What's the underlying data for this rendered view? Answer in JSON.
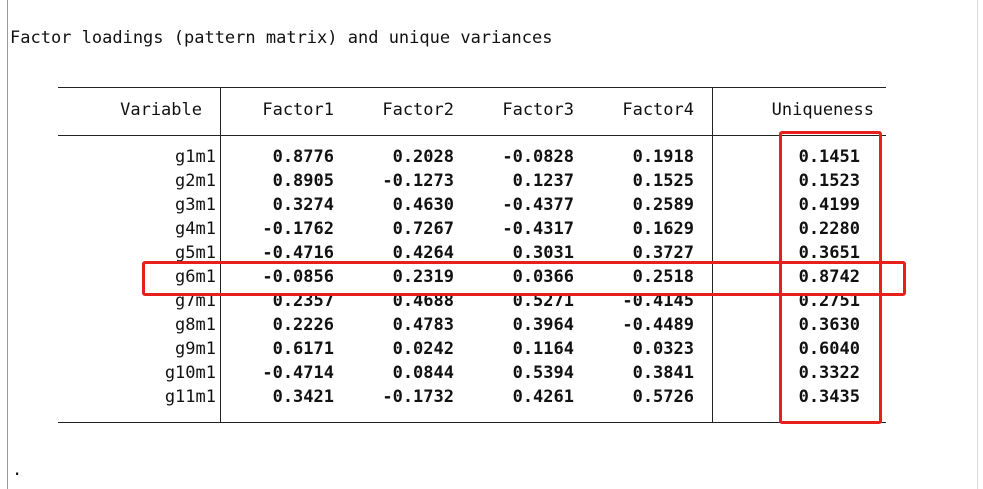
{
  "title": "Factor loadings (pattern matrix) and unique variances",
  "trailing_prompt": ".",
  "headers": [
    "Variable",
    "Factor1",
    "Factor2",
    "Factor3",
    "Factor4",
    "Uniqueness"
  ],
  "rows": [
    {
      "variable": "g1m1",
      "factor1": "0.8776",
      "factor2": "0.2028",
      "factor3": "-0.0828",
      "factor4": "0.1918",
      "uniqueness": "0.1451"
    },
    {
      "variable": "g2m1",
      "factor1": "0.8905",
      "factor2": "-0.1273",
      "factor3": "0.1237",
      "factor4": "0.1525",
      "uniqueness": "0.1523"
    },
    {
      "variable": "g3m1",
      "factor1": "0.3274",
      "factor2": "0.4630",
      "factor3": "-0.4377",
      "factor4": "0.2589",
      "uniqueness": "0.4199"
    },
    {
      "variable": "g4m1",
      "factor1": "-0.1762",
      "factor2": "0.7267",
      "factor3": "-0.4317",
      "factor4": "0.1629",
      "uniqueness": "0.2280"
    },
    {
      "variable": "g5m1",
      "factor1": "-0.4716",
      "factor2": "0.4264",
      "factor3": "0.3031",
      "factor4": "0.3727",
      "uniqueness": "0.3651"
    },
    {
      "variable": "g6m1",
      "factor1": "-0.0856",
      "factor2": "0.2319",
      "factor3": "0.0366",
      "factor4": "0.2518",
      "uniqueness": "0.8742"
    },
    {
      "variable": "g7m1",
      "factor1": "0.2357",
      "factor2": "0.4688",
      "factor3": "0.5271",
      "factor4": "-0.4145",
      "uniqueness": "0.2751"
    },
    {
      "variable": "g8m1",
      "factor1": "0.2226",
      "factor2": "0.4783",
      "factor3": "0.3964",
      "factor4": "-0.4489",
      "uniqueness": "0.3630"
    },
    {
      "variable": "g9m1",
      "factor1": "0.6171",
      "factor2": "0.0242",
      "factor3": "0.1164",
      "factor4": "0.0323",
      "uniqueness": "0.6040"
    },
    {
      "variable": "g10m1",
      "factor1": "-0.4714",
      "factor2": "0.0844",
      "factor3": "0.5394",
      "factor4": "0.3841",
      "uniqueness": "0.3322"
    },
    {
      "variable": "g11m1",
      "factor1": "0.3421",
      "factor2": "-0.1732",
      "factor3": "0.4261",
      "factor4": "0.5726",
      "uniqueness": "0.3435"
    }
  ],
  "highlight_color": "#e8201b",
  "highlighted_row_variable": "g6m1",
  "highlighted_column": "Uniqueness"
}
